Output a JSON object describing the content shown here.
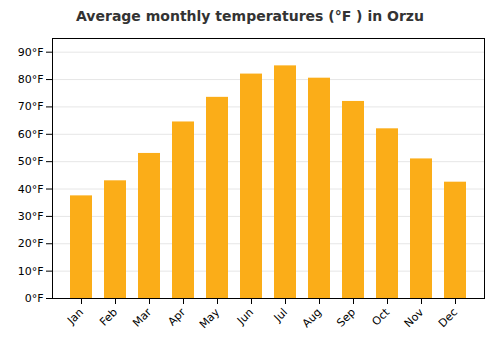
{
  "chart_data": {
    "type": "bar",
    "title": "Average monthly temperatures (°F ) in Orzu",
    "categories": [
      "Jan",
      "Feb",
      "Mar",
      "Apr",
      "May",
      "Jun",
      "Jul",
      "Aug",
      "Sep",
      "Oct",
      "Nov",
      "Dec"
    ],
    "values": [
      37.5,
      43,
      53,
      64.5,
      73.5,
      82,
      85,
      80.5,
      72,
      62,
      51,
      42.5
    ],
    "color": "#FBAD18",
    "ylim": [
      0,
      95
    ],
    "yticks": [
      {
        "value": 0,
        "label": "0°F"
      },
      {
        "value": 10,
        "label": "10°F"
      },
      {
        "value": 20,
        "label": "20°F"
      },
      {
        "value": 30,
        "label": "30°F"
      },
      {
        "value": 40,
        "label": "40°F"
      },
      {
        "value": 50,
        "label": "50°F"
      },
      {
        "value": 60,
        "label": "60°F"
      },
      {
        "value": 70,
        "label": "70°F"
      },
      {
        "value": 80,
        "label": "80°F"
      },
      {
        "value": 90,
        "label": "90°F"
      }
    ],
    "grid": true
  }
}
